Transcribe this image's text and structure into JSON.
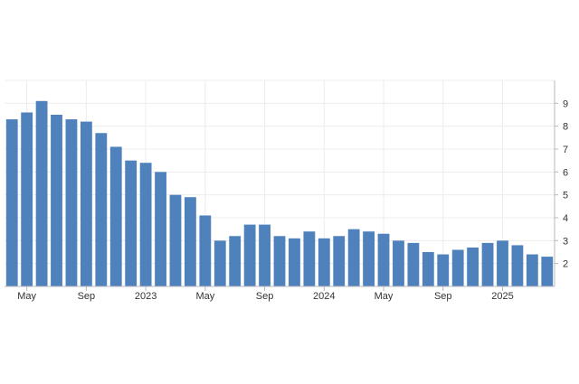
{
  "chart_data": {
    "type": "bar",
    "categories": [
      "2022-04",
      "2022-05",
      "2022-06",
      "2022-07",
      "2022-08",
      "2022-09",
      "2022-10",
      "2022-11",
      "2022-12",
      "2023-01",
      "2023-02",
      "2023-03",
      "2023-04",
      "2023-05",
      "2023-06",
      "2023-07",
      "2023-08",
      "2023-09",
      "2023-10",
      "2023-11",
      "2023-12",
      "2024-01",
      "2024-02",
      "2024-03",
      "2024-04",
      "2024-05",
      "2024-06",
      "2024-07",
      "2024-08",
      "2024-09",
      "2024-10",
      "2024-11",
      "2024-12",
      "2025-01",
      "2025-02",
      "2025-03",
      "2025-04"
    ],
    "values": [
      8.3,
      8.6,
      9.1,
      8.5,
      8.3,
      8.2,
      7.7,
      7.1,
      6.5,
      6.4,
      6.0,
      5.0,
      4.9,
      4.1,
      3.0,
      3.2,
      3.7,
      3.7,
      3.2,
      3.1,
      3.4,
      3.1,
      3.2,
      3.5,
      3.4,
      3.3,
      3.0,
      2.9,
      2.5,
      2.4,
      2.6,
      2.7,
      2.9,
      3.0,
      2.8,
      2.4,
      2.3
    ],
    "x_tick_labels": [
      {
        "category": "2022-05",
        "label": "May"
      },
      {
        "category": "2022-09",
        "label": "Sep"
      },
      {
        "category": "2023-01",
        "label": "2023"
      },
      {
        "category": "2023-05",
        "label": "May"
      },
      {
        "category": "2023-09",
        "label": "Sep"
      },
      {
        "category": "2024-01",
        "label": "2024"
      },
      {
        "category": "2024-05",
        "label": "May"
      },
      {
        "category": "2024-09",
        "label": "Sep"
      },
      {
        "category": "2025-01",
        "label": "2025"
      }
    ],
    "y_ticks": [
      2,
      3,
      4,
      5,
      6,
      7,
      8,
      9
    ],
    "ylim": [
      1,
      10
    ],
    "y_axis_position": "right",
    "grid": true,
    "title": "",
    "xlabel": "",
    "ylabel": "",
    "colors": {
      "bar": "#4f81bd",
      "grid": "#ececec",
      "axis": "#b8b8b8",
      "text": "#333333"
    }
  }
}
